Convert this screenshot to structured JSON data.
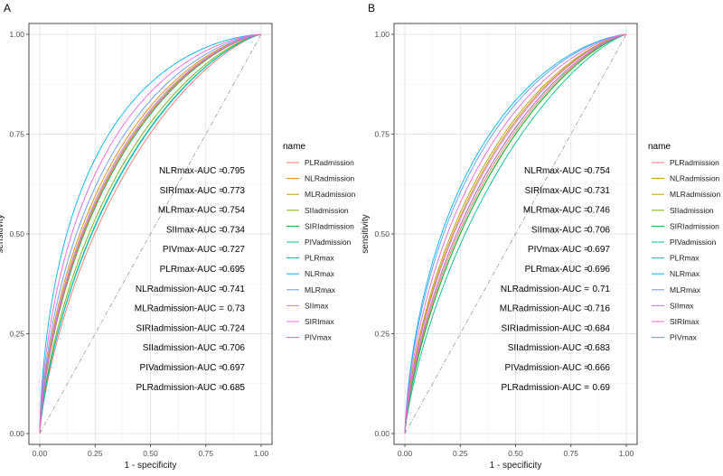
{
  "chart_data": [
    {
      "panel_label": "A",
      "type": "line",
      "xlabel": "1 - specificity",
      "ylabel": "sensitivity",
      "xlim": [
        0,
        1
      ],
      "ylim": [
        0,
        1
      ],
      "x_ticks": [
        "0.00",
        "0.25",
        "0.50",
        "0.75",
        "1.00"
      ],
      "y_ticks": [
        "0.00",
        "0.25",
        "0.50",
        "0.75",
        "1.00"
      ],
      "grid": true,
      "reference_line": "diagonal",
      "legend_title": "name",
      "legend_position": "right",
      "series": [
        {
          "name": "PLRadmission",
          "color": "#F8766D",
          "auc": 0.685
        },
        {
          "name": "NLRadmission",
          "color": "#DE8C00",
          "auc": 0.741
        },
        {
          "name": "MLRadmission",
          "color": "#B79F00",
          "auc": 0.73
        },
        {
          "name": "SIIadmission",
          "color": "#7CAE00",
          "auc": 0.706
        },
        {
          "name": "SIRIadmission",
          "color": "#00BA38",
          "auc": 0.724
        },
        {
          "name": "PIVadmission",
          "color": "#00C08B",
          "auc": 0.697
        },
        {
          "name": "PLRmax",
          "color": "#00BFC4",
          "auc": 0.695
        },
        {
          "name": "NLRmax",
          "color": "#00B4F0",
          "auc": 0.795
        },
        {
          "name": "MLRmax",
          "color": "#619CFF",
          "auc": 0.754
        },
        {
          "name": "SIImax",
          "color": "#C77CFF",
          "auc": 0.734
        },
        {
          "name": "SIRImax",
          "color": "#F564E3",
          "auc": 0.773
        },
        {
          "name": "PIVmax",
          "color": "#FF64B0",
          "auc": 0.727
        }
      ],
      "annotations": [
        {
          "label": "NLRmax-AUC =",
          "value": "0.795"
        },
        {
          "label": "SIRImax-AUC =",
          "value": "0.773"
        },
        {
          "label": "MLRmax-AUC =",
          "value": "0.754"
        },
        {
          "label": "SIImax-AUC =",
          "value": "0.734"
        },
        {
          "label": "PIVmax-AUC =",
          "value": "0.727"
        },
        {
          "label": "PLRmax-AUC =",
          "value": "0.695"
        },
        {
          "label": "NLRadmission-AUC =",
          "value": "0.741"
        },
        {
          "label": "MLRadmission-AUC =",
          "value": "0.73"
        },
        {
          "label": "SIRIadmission-AUC =",
          "value": "0.724"
        },
        {
          "label": "SIIadmission-AUC =",
          "value": "0.706"
        },
        {
          "label": "PIVadmission-AUC =",
          "value": "0.697"
        },
        {
          "label": "PLRadmission-AUC =",
          "value": "0.685"
        }
      ]
    },
    {
      "panel_label": "B",
      "type": "line",
      "xlabel": "1 - specificity",
      "ylabel": "sensitivity",
      "xlim": [
        0,
        1
      ],
      "ylim": [
        0,
        1
      ],
      "x_ticks": [
        "0.00",
        "0.25",
        "0.50",
        "0.75",
        "1.00"
      ],
      "y_ticks": [
        "0.00",
        "0.25",
        "0.50",
        "0.75",
        "1.00"
      ],
      "grid": true,
      "reference_line": "diagonal",
      "legend_title": "name",
      "legend_position": "right",
      "series": [
        {
          "name": "PLRadmission",
          "color": "#F8766D",
          "auc": 0.69
        },
        {
          "name": "NLRadmission",
          "color": "#DE8C00",
          "auc": 0.71
        },
        {
          "name": "MLRadmission",
          "color": "#B79F00",
          "auc": 0.716
        },
        {
          "name": "SIIadmission",
          "color": "#7CAE00",
          "auc": 0.683
        },
        {
          "name": "SIRIadmission",
          "color": "#00BA38",
          "auc": 0.684
        },
        {
          "name": "PIVadmission",
          "color": "#00C08B",
          "auc": 0.666
        },
        {
          "name": "PLRmax",
          "color": "#00BFC4",
          "auc": 0.696
        },
        {
          "name": "NLRmax",
          "color": "#00B4F0",
          "auc": 0.754
        },
        {
          "name": "MLRmax",
          "color": "#619CFF",
          "auc": 0.746
        },
        {
          "name": "SIImax",
          "color": "#C77CFF",
          "auc": 0.706
        },
        {
          "name": "SIRImax",
          "color": "#F564E3",
          "auc": 0.731
        },
        {
          "name": "PIVmax",
          "color": "#FF64B0",
          "auc": 0.697
        }
      ],
      "annotations": [
        {
          "label": "NLRmax-AUC =",
          "value": "0.754"
        },
        {
          "label": "SIRImax-AUC =",
          "value": "0.731"
        },
        {
          "label": "MLRmax-AUC =",
          "value": "0.746"
        },
        {
          "label": "SIImax-AUC =",
          "value": "0.706"
        },
        {
          "label": "PIVmax-AUC =",
          "value": "0.697"
        },
        {
          "label": "PLRmax-AUC =",
          "value": "0.696"
        },
        {
          "label": "NLRadmission-AUC =",
          "value": "0.71"
        },
        {
          "label": "MLRadmission-AUC =",
          "value": "0.716"
        },
        {
          "label": "SIRIadmission-AUC =",
          "value": "0.684"
        },
        {
          "label": "SIIadmission-AUC =",
          "value": "0.683"
        },
        {
          "label": "PIVadmission-AUC =",
          "value": "0.666"
        },
        {
          "label": "PLRadmission-AUC =",
          "value": "0.69"
        }
      ]
    }
  ]
}
